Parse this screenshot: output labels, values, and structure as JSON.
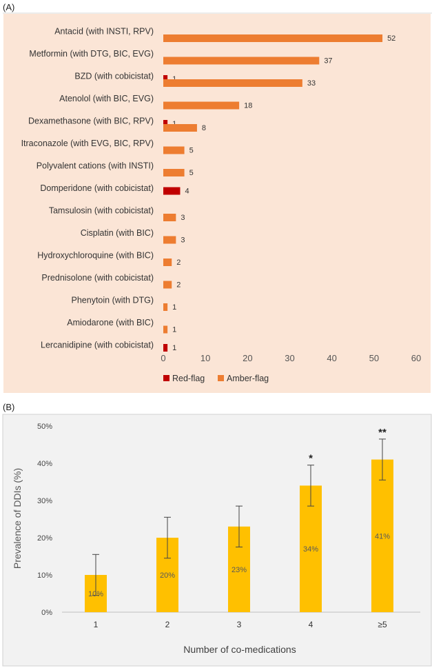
{
  "panels": {
    "a_label": "(A)",
    "b_label": "(B)"
  },
  "colors": {
    "red_flag": "#c00000",
    "amber_flag": "#ed7d31",
    "panel_a_bg": "#fbe5d6",
    "panel_b_bg": "#f2f2f2",
    "bar_b": "#ffc000"
  },
  "chart_data": [
    {
      "type": "bar",
      "orientation": "horizontal",
      "categories": [
        "Antacid (with INSTI, RPV)",
        "Metformin (with DTG, BIC, EVG)",
        "BZD (with cobicistat)",
        "Atenolol (with BIC, EVG)",
        "Dexamethasone (with  BIC, RPV)",
        "Itraconazole (with EVG, BIC, RPV)",
        "Polyvalent cations (with INSTI)",
        "Domperidone (with cobicistat)",
        "Tamsulosin (with cobicistat)",
        "Cisplatin (with BIC)",
        "Hydroxychloroquine (with BIC)",
        "Prednisolone (with cobicistat)",
        "Phenytoin (with DTG)",
        "Amiodarone (with BIC)",
        "Lercanidipine (with cobicistat)"
      ],
      "series": [
        {
          "name": "Red-flag",
          "values": [
            null,
            null,
            1,
            null,
            1,
            null,
            null,
            4,
            null,
            null,
            null,
            null,
            null,
            null,
            1
          ]
        },
        {
          "name": "Amber-flag",
          "values": [
            52,
            37,
            33,
            18,
            8,
            5,
            5,
            null,
            3,
            3,
            2,
            2,
            1,
            1,
            null
          ]
        }
      ],
      "xlim": [
        0,
        60
      ],
      "xticks": [
        "0",
        "10",
        "20",
        "30",
        "40",
        "50",
        "60"
      ],
      "legend": "bottom"
    },
    {
      "type": "bar",
      "categories": [
        "1",
        "2",
        "3",
        "4",
        "≥5"
      ],
      "values": [
        10,
        20,
        23,
        34,
        41
      ],
      "data_labels": [
        "10%",
        "20%",
        "23%",
        "34%",
        "41%"
      ],
      "error_bars": [
        5.5,
        5.5,
        5.5,
        5.5,
        5.5
      ],
      "significance": [
        "",
        "",
        "",
        "*",
        "**"
      ],
      "xlabel": "Number of co-medications",
      "ylabel": "Prevalence of DDIs (%)",
      "ylim": [
        0,
        50
      ],
      "yticks": [
        "0%",
        "10%",
        "20%",
        "30%",
        "40%",
        "50%"
      ]
    }
  ]
}
